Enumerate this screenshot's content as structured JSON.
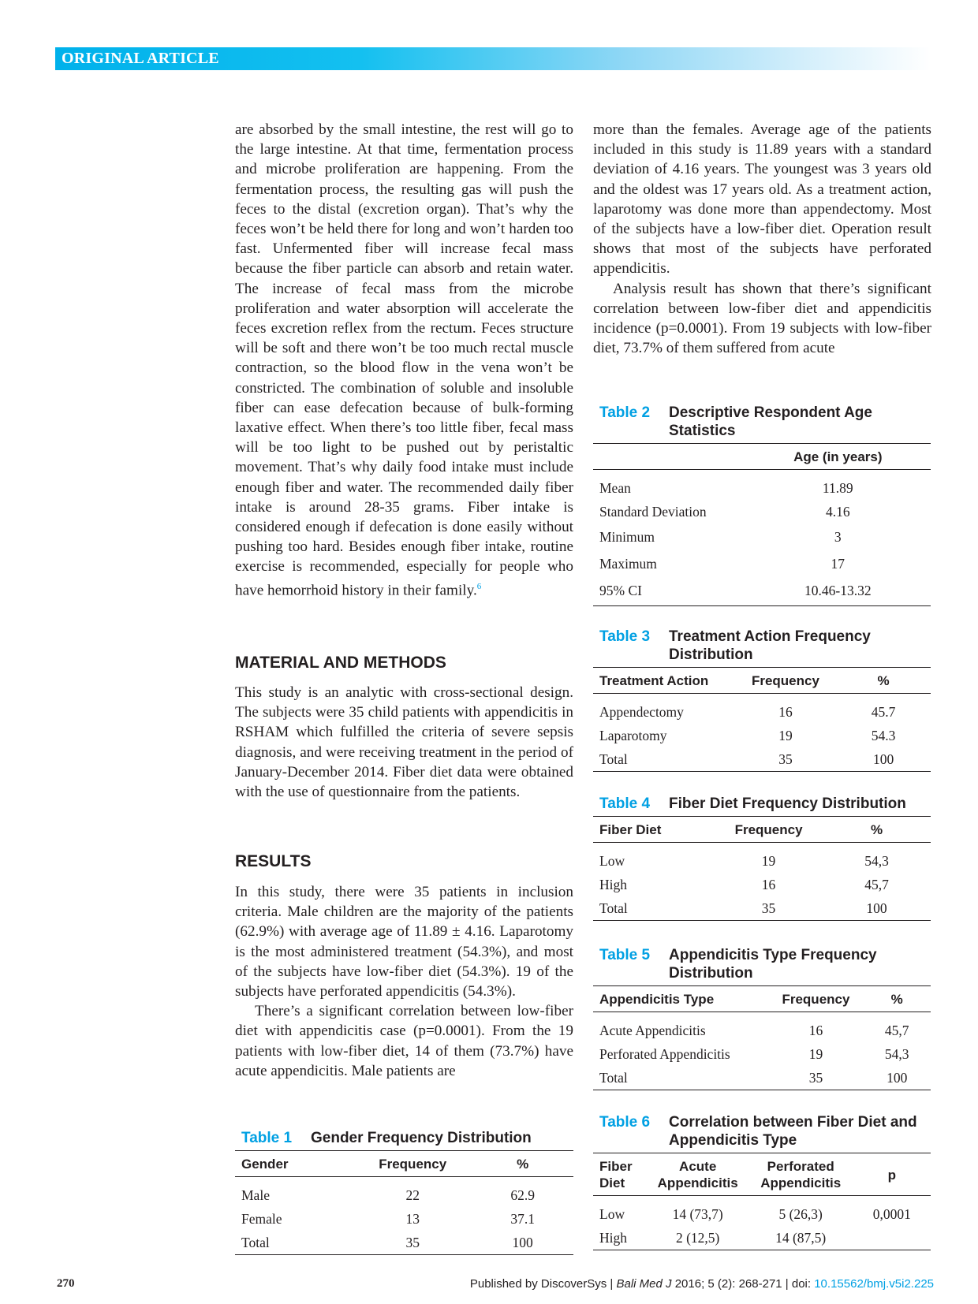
{
  "header": {
    "label": "ORIGINAL ARTICLE"
  },
  "left": {
    "intro": "are absorbed by the small intestine, the rest will go to the large intestine. At that time, fermentation process and microbe proliferation are happening. From the fermentation process, the resulting gas will push the feces to the distal (excretion organ). That’s why the feces won’t be held there for long and won’t harden too fast. Unfermented fiber will increase fecal mass because the fiber particle can absorb and retain water. The increase of fecal mass from the microbe proliferation and water absorption will accelerate the feces excretion reflex from the rectum. Feces structure will be soft and there won’t be too much rectal muscle contraction, so the blood flow in the vena won’t be constricted. The combination of soluble and insoluble fiber can ease defecation because of bulk-forming laxative effect. When there’s too little fiber, fecal mass will be too light to be pushed out by peristaltic movement. That’s why daily food intake must include enough fiber and water. The recommended daily fiber intake is around 28-35 grams. Fiber intake is considered enough if defecation is done easily without pushing too hard. Besides enough fiber intake, routine exercise is recommended, especially for people who have hemorrhoid history in their family.",
    "intro_ref": "6",
    "methods_heading": "MATERIAL AND METHODS",
    "methods": "This study is an analytic with cross-sectional design. The subjects were 35 child patients with appendicitis in RSHAM which fulfilled the criteria of severe sepsis diagnosis, and were receiving treatment in the period of January-December 2014. Fiber diet data were obtained with the use of questionnaire from the patients.",
    "results_heading": "RESULTS",
    "results_p1": "In this study, there were 35 patients in inclusion criteria. Male children are the majority of the patients (62.9%) with average age of 11.89 ± 4.16. Laparotomy is the most administered treatment (54.3%), and most of the subjects have low-fiber diet (54.3%). 19 of the subjects have perforated appendicitis (54.3%).",
    "results_p2": "There’s a significant correlation between low-fiber diet with appendicitis case (p=0.0001). From the 19 patients with low-fiber diet, 14 of them (73.7%) have acute appendicitis. Male patients are"
  },
  "right": {
    "p1": "more than the females.  Average age of the patients included in this study is 11.89 years with a standard deviation of 4.16 years. The youngest was 3 years old and the oldest was 17 years old. As a treatment action, laparotomy was done more than appendectomy. Most of the subjects have a low-fiber diet. Operation result shows that most of the subjects have perforated appendicitis.",
    "p2": "Analysis result has shown that there’s significant correlation between low-fiber diet and appendicitis incidence (p=0.0001). From 19 subjects with low-fiber diet, 73.7% of them suffered from acute"
  },
  "tables": {
    "t1": {
      "num": "Table 1",
      "title": "Gender Frequency Distribution",
      "headers": [
        "Gender",
        "Frequency",
        "%"
      ],
      "rows": [
        [
          "Male",
          "22",
          "62.9"
        ],
        [
          "Female",
          "13",
          "37.1"
        ],
        [
          "Total",
          "35",
          "100"
        ]
      ]
    },
    "t2": {
      "num": "Table 2",
      "title": "Descriptive Respondent Age Statistics",
      "headers": [
        "",
        "Age (in years)"
      ],
      "rows": [
        [
          "Mean",
          "11.89"
        ],
        [
          "Standard Deviation",
          "4.16"
        ],
        [
          "Minimum",
          "3"
        ],
        [
          "Maximum",
          "17"
        ],
        [
          "95% CI",
          "10.46-13.32"
        ]
      ]
    },
    "t3": {
      "num": "Table 3",
      "title": "Treatment Action Frequency Distribution",
      "headers": [
        "Treatment Action",
        "Frequency",
        "%"
      ],
      "rows": [
        [
          "Appendectomy",
          "16",
          "45.7"
        ],
        [
          "Laparotomy",
          "19",
          "54.3"
        ],
        [
          "Total",
          "35",
          "100"
        ]
      ]
    },
    "t4": {
      "num": "Table 4",
      "title": "Fiber Diet Frequency Distribution",
      "headers": [
        "Fiber Diet",
        "Frequency",
        "%"
      ],
      "rows": [
        [
          "Low",
          "19",
          "54,3"
        ],
        [
          "High",
          "16",
          "45,7"
        ],
        [
          "Total",
          "35",
          "100"
        ]
      ]
    },
    "t5": {
      "num": "Table 5",
      "title": "Appendicitis Type Frequency Distribution",
      "headers": [
        "Appendicitis Type",
        "Frequency",
        "%"
      ],
      "rows": [
        [
          "Acute Appendicitis",
          "16",
          "45,7"
        ],
        [
          "Perforated Appendicitis",
          "19",
          "54,3"
        ],
        [
          "Total",
          "35",
          "100"
        ]
      ]
    },
    "t6": {
      "num": "Table 6",
      "title": "Correlation between Fiber Diet and Appendicitis Type",
      "headers": [
        "Fiber Diet",
        "Acute Appendicitis",
        "Perforated Appendicitis",
        "p"
      ],
      "rows": [
        [
          "Low",
          "14 (73,7)",
          "5 (26,3)",
          "0,0001"
        ],
        [
          "High",
          "2 (12,5)",
          "14 (87,5)",
          ""
        ]
      ]
    }
  },
  "footer": {
    "page_number": "270",
    "publisher": "Published by DiscoverSys | ",
    "journal": "Bali Med J",
    "citation": " 2016; 5 (2): 268-271 | doi: ",
    "doi": "10.15562/bmj.v5i2.225"
  },
  "colors": {
    "accent": "#00a0e3",
    "header_bar": "#00b1eb"
  }
}
